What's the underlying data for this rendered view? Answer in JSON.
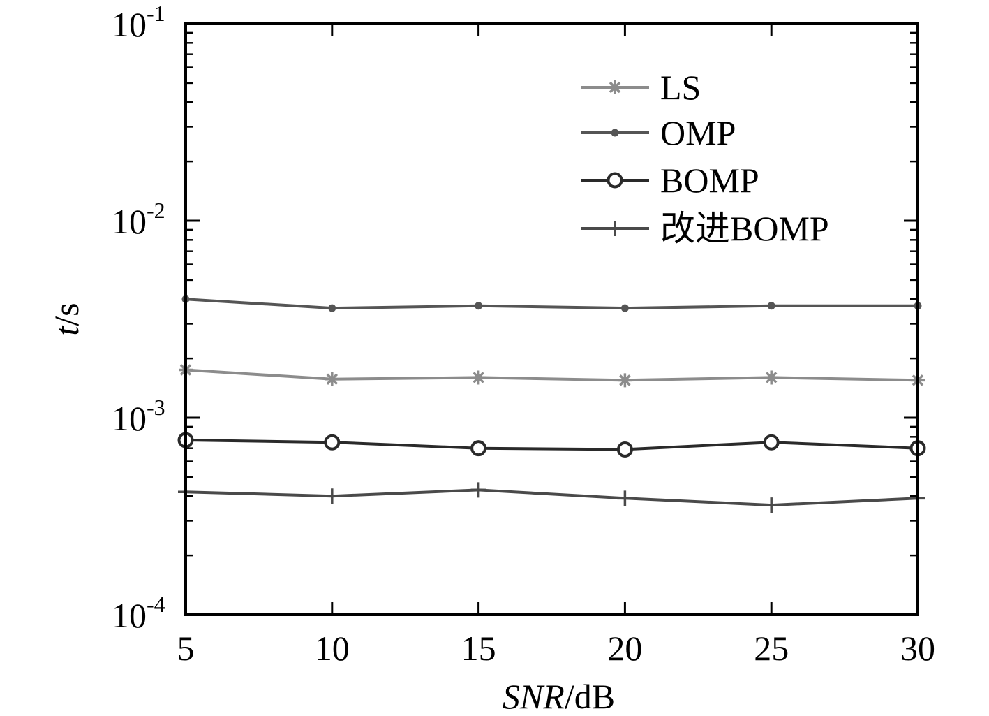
{
  "chart_data": {
    "type": "line",
    "title": "",
    "xlabel_italic": "SNR",
    "xlabel_rest": "/dB",
    "ylabel_italic": "t",
    "ylabel_rest": "/s",
    "y_scale": "log",
    "xlim": [
      5,
      30
    ],
    "ylim": [
      0.0001,
      0.1
    ],
    "x_ticks": [
      5,
      10,
      15,
      20,
      25,
      30
    ],
    "x_tick_labels": [
      "5",
      "10",
      "15",
      "20",
      "25",
      "30"
    ],
    "y_ticks": [
      {
        "value": 0.1,
        "base": "10",
        "exp": "-1"
      },
      {
        "value": 0.01,
        "base": "10",
        "exp": "-2"
      },
      {
        "value": 0.001,
        "base": "10",
        "exp": "-3"
      },
      {
        "value": 0.0001,
        "base": "10",
        "exp": "-4"
      }
    ],
    "grid": false,
    "legend_position": "top-right",
    "x": [
      5,
      10,
      15,
      20,
      25,
      30
    ],
    "series": [
      {
        "name": "LS",
        "marker": "asterisk",
        "color": "#8c8c8c",
        "values": [
          0.00175,
          0.00157,
          0.0016,
          0.00155,
          0.0016,
          0.00155
        ]
      },
      {
        "name": "OMP",
        "marker": "dot",
        "color": "#555555",
        "values": [
          0.004,
          0.0036,
          0.0037,
          0.0036,
          0.0037,
          0.0037
        ]
      },
      {
        "name": "BOMP",
        "marker": "circle",
        "color": "#2a2a2a",
        "values": [
          0.00077,
          0.00075,
          0.0007,
          0.00069,
          0.00075,
          0.0007
        ]
      },
      {
        "name": "改进BOMP",
        "marker": "plus",
        "color": "#4a4a4a",
        "values": [
          0.00042,
          0.0004,
          0.00043,
          0.00039,
          0.00036,
          0.00039
        ]
      }
    ]
  }
}
